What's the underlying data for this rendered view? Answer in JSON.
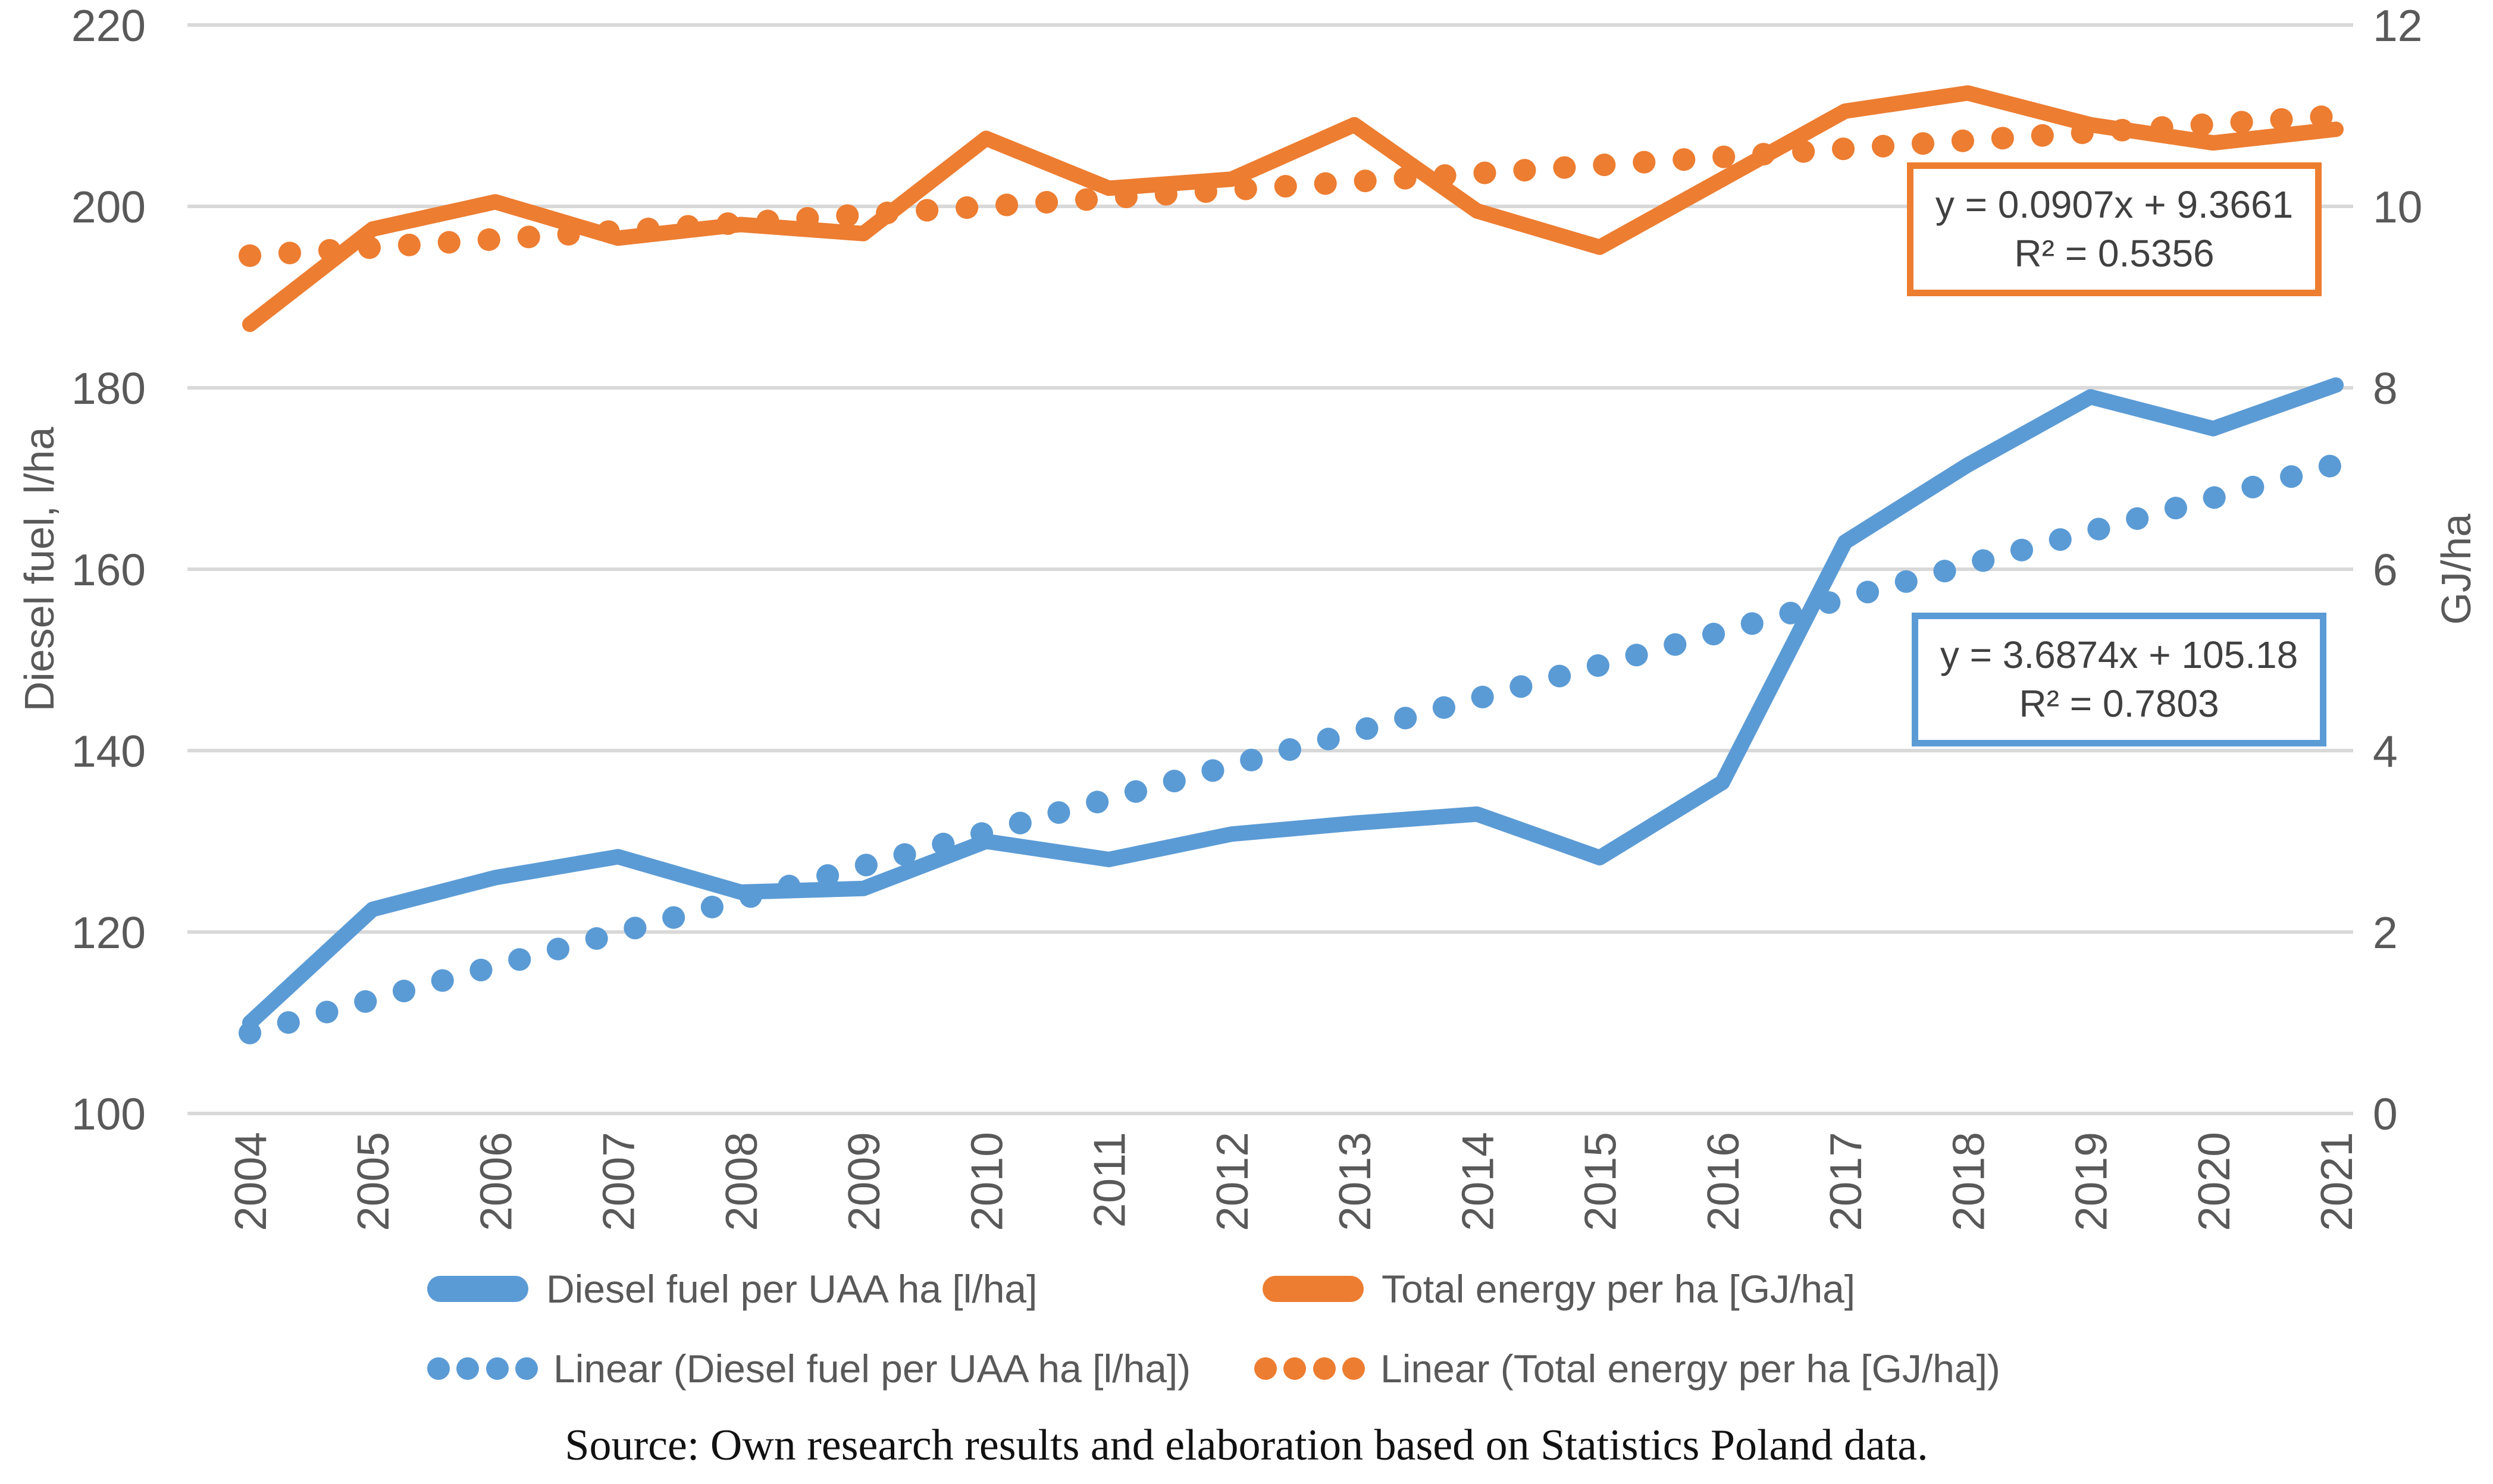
{
  "chart_data": {
    "type": "line",
    "title": "",
    "categories": [
      "2004",
      "2005",
      "2006",
      "2007",
      "2008",
      "2009",
      "2010",
      "2011",
      "2012",
      "2013",
      "2014",
      "2015",
      "2016",
      "2017",
      "2018",
      "2019",
      "2020",
      "2021"
    ],
    "series": [
      {
        "name": "Diesel fuel per UAA ha [l/ha]",
        "axis": "left",
        "style": "solid",
        "color": "#5B9BD5",
        "values": [
          110,
          122.5,
          126,
          128.3,
          124.4,
          124.8,
          130,
          128,
          130.8,
          132,
          133,
          128.2,
          136.5,
          163,
          171.5,
          179,
          175.5,
          180.3
        ]
      },
      {
        "name": "Total energy per ha [GJ/ha]",
        "axis": "right",
        "style": "solid",
        "color": "#ED7D31",
        "values": [
          8.7,
          9.75,
          10.05,
          9.65,
          9.8,
          9.7,
          10.75,
          10.2,
          10.3,
          10.9,
          9.95,
          9.55,
          10.3,
          11.05,
          11.25,
          10.9,
          10.7,
          10.85
        ]
      }
    ],
    "trendlines": [
      {
        "name": "Linear (Diesel fuel per UAA ha [l/ha])",
        "axis": "left",
        "style": "dotted",
        "color": "#5B9BD5",
        "slope": 3.6874,
        "intercept": 105.18,
        "equation": "y = 3.6874x + 105.18",
        "r_squared": "R² = 0.7803"
      },
      {
        "name": "Linear (Total energy per ha [GJ/ha])",
        "axis": "right",
        "style": "dotted",
        "color": "#ED7D31",
        "slope": 0.0907,
        "intercept": 9.3661,
        "equation": "y = 0.0907x + 9.3661",
        "r_squared": "R² = 0.5356"
      }
    ],
    "axes": {
      "left": {
        "label": "Diesel fuel, l/ha",
        "min": 100,
        "max": 220,
        "step": 20,
        "ticks": [
          220,
          200,
          180,
          160,
          140,
          120,
          100
        ]
      },
      "right": {
        "label": "GJ/ha",
        "min": 0,
        "max": 12,
        "step": 2,
        "ticks": [
          12,
          10,
          8,
          6,
          4,
          2,
          0
        ]
      }
    },
    "grid": true,
    "legend_position": "bottom"
  },
  "annotations": {
    "energy_box": {
      "line1": "y = 0.0907x + 9.3661",
      "line2": "R² = 0.5356",
      "color": "#ED7D31"
    },
    "diesel_box": {
      "line1": "y = 3.6874x + 105.18",
      "line2": "R² = 0.7803",
      "color": "#5B9BD5"
    }
  },
  "legend": {
    "diesel_solid": "Diesel fuel per UAA ha [l/ha]",
    "energy_solid": "Total energy per ha [GJ/ha]",
    "diesel_linear": "Linear (Diesel fuel per UAA ha [l/ha])",
    "energy_linear": "Linear (Total energy per ha [GJ/ha])"
  },
  "source_note": "Source: Own research results and elaboration based on Statistics Poland data.",
  "colors": {
    "diesel_blue": "#5B9BD5",
    "energy_orange": "#ED7D31",
    "gridline": "#D9D9D9",
    "axis_text": "#595959",
    "equation_text": "#404040"
  }
}
